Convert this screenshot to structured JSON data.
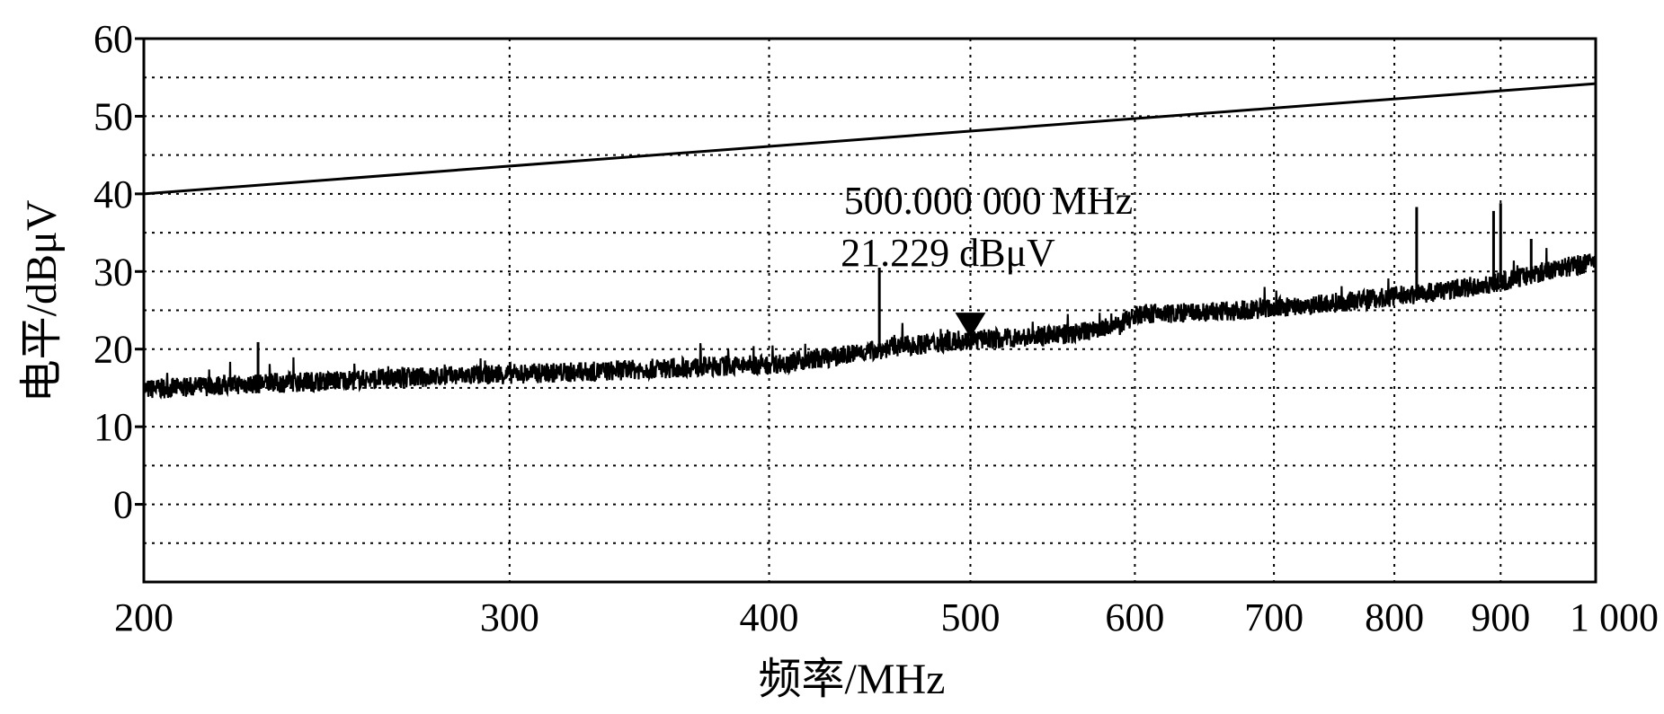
{
  "chart_data": {
    "type": "line",
    "xlabel": "频率/MHz",
    "ylabel": "电平/dBμV",
    "xscale": "log",
    "xlim": [
      200,
      1000
    ],
    "ylim": [
      -10,
      60
    ],
    "x_ticks": [
      200,
      300,
      400,
      500,
      600,
      700,
      800,
      900,
      1000
    ],
    "x_tick_labels": [
      "200",
      "300",
      "400",
      "500",
      "600",
      "700",
      "800",
      "900",
      "1 000"
    ],
    "y_ticks": [
      0,
      10,
      20,
      30,
      40,
      50,
      60
    ],
    "y_tick_labels": [
      "0",
      "10",
      "20",
      "30",
      "40",
      "50",
      "60"
    ],
    "y_minor_grid": [
      -5,
      5,
      15,
      25,
      35,
      45,
      55
    ],
    "grid": true,
    "series": [
      {
        "role": "limit-line",
        "x": [
          200,
          1000
        ],
        "y": [
          40,
          54.2
        ],
        "color": "#000000"
      },
      {
        "role": "measured-spectrum",
        "x": [
          200,
          220,
          250,
          280,
          300,
          330,
          360,
          400,
          430,
          460,
          500,
          530,
          560,
          590,
          600,
          650,
          700,
          750,
          800,
          850,
          900,
          950,
          1000
        ],
        "y": [
          14.8,
          15.4,
          16.0,
          16.5,
          16.8,
          17.1,
          17.6,
          18.0,
          19.0,
          20.3,
          21.2,
          21.5,
          22.0,
          23.0,
          24.5,
          24.7,
          25.3,
          26.0,
          26.8,
          27.6,
          28.6,
          30.2,
          31.2
        ],
        "noise_band": 1.3,
        "spikes": [
          {
            "x": 227,
            "y": 20.9
          },
          {
            "x": 452,
            "y": 30.5
          },
          {
            "x": 820,
            "y": 38.3
          },
          {
            "x": 893,
            "y": 37.8
          },
          {
            "x": 900,
            "y": 38.8
          },
          {
            "x": 931,
            "y": 34.2
          }
        ],
        "color": "#000000"
      }
    ],
    "marker": {
      "x": 500,
      "y": 21.229,
      "label_freq": "500.000 000 MHz",
      "label_level": "21.229 dBμV"
    }
  }
}
